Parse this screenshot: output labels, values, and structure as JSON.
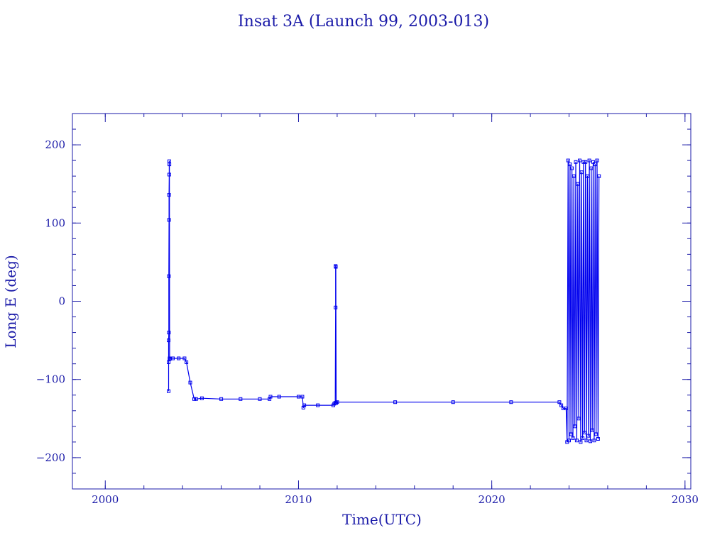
{
  "chart_data": {
    "type": "line",
    "title": "Insat 3A (Launch 99, 2003-013)",
    "xlabel": "Time(UTC)",
    "ylabel": "Long E (deg)",
    "xlim": [
      1998.3,
      2030.3
    ],
    "ylim": [
      -240,
      240
    ],
    "xticks": [
      2000,
      2010,
      2020,
      2030
    ],
    "yticks": [
      200,
      100,
      0,
      -100,
      -200
    ],
    "xtick_labels": [
      "2000",
      "2010",
      "2020",
      "2030"
    ],
    "ytick_labels": [
      "200",
      "100",
      "0",
      "−100",
      "−200"
    ],
    "xminor_step": 2,
    "yminor_step": 20,
    "grid": false,
    "legend": "none",
    "line_color": "#0000ee",
    "frame_color": "#1a1aa8",
    "series": [
      {
        "marker": "square",
        "x": [
          2003.28,
          2003.28,
          2003.28,
          2003.29,
          2003.29,
          2003.3,
          2003.3,
          2003.31,
          2003.31,
          2003.32,
          2003.33,
          2003.33,
          2003.34,
          2003.36,
          2003.5,
          2003.8,
          2004.1,
          2004.2,
          2004.4,
          2004.6,
          2004.7,
          2005.0,
          2006.0,
          2007.0,
          2008.0,
          2008.5,
          2008.55,
          2009.0,
          2010.0,
          2010.2,
          2010.25,
          2010.3,
          2011.0,
          2011.8,
          2011.85,
          2011.9,
          2011.92,
          2011.92,
          2011.93,
          2011.95,
          2012.0,
          2015.0,
          2018.0,
          2021.0,
          2023.5,
          2023.6,
          2023.7,
          2023.85,
          2023.9,
          2023.95,
          2024.0,
          2024.05,
          2024.1,
          2024.15,
          2024.2,
          2024.25,
          2024.3,
          2024.35,
          2024.4,
          2024.45,
          2024.5,
          2024.55,
          2024.6,
          2024.65,
          2024.7,
          2024.75,
          2024.8,
          2024.85,
          2024.9,
          2024.95,
          2025.0,
          2025.05,
          2025.1,
          2025.15,
          2025.2,
          2025.25,
          2025.3,
          2025.35,
          2025.4,
          2025.45,
          2025.5,
          2025.55
        ],
        "y": [
          -115,
          -78,
          -50,
          -40,
          32,
          104,
          136,
          162,
          179,
          175,
          -74,
          -73,
          -73,
          -73,
          -73,
          -73,
          -73,
          -78,
          -104,
          -125,
          -125,
          -124,
          -125,
          -125,
          -125,
          -125,
          -122,
          -122,
          -122,
          -122,
          -136,
          -133,
          -133,
          -133,
          -131,
          -130,
          -8,
          45,
          44,
          -130,
          -129,
          -129,
          -129,
          -129,
          -129,
          -133,
          -137,
          -137,
          -180,
          180,
          -178,
          175,
          -170,
          170,
          -175,
          160,
          -160,
          178,
          -178,
          150,
          -150,
          180,
          -180,
          165,
          -175,
          178,
          -168,
          178,
          -178,
          160,
          -172,
          180,
          -179,
          170,
          -165,
          178,
          -178,
          175,
          -170,
          180,
          -176,
          160
        ]
      }
    ]
  }
}
